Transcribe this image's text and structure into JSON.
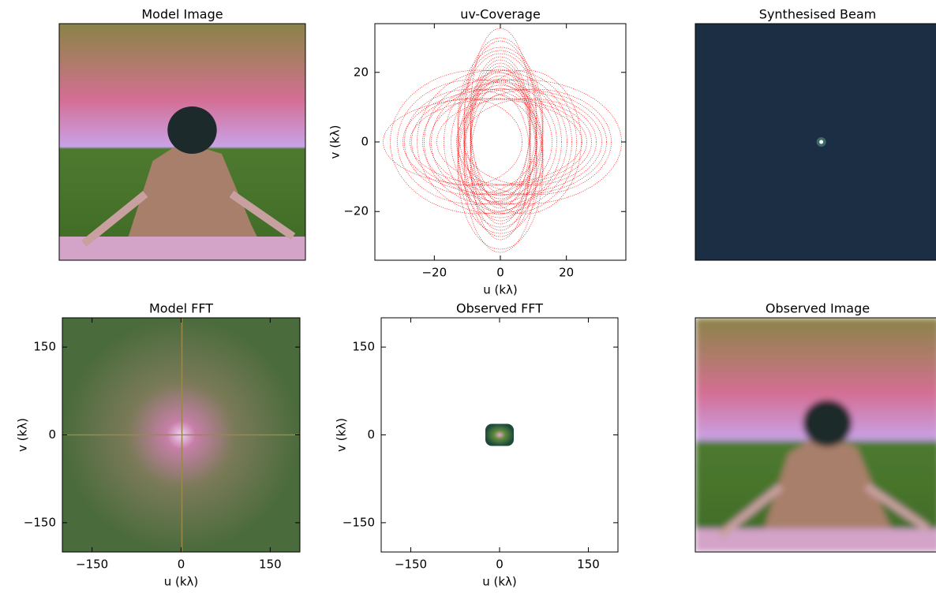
{
  "chart_data": [
    {
      "type": "image",
      "title": "Model Image"
    },
    {
      "type": "scatter",
      "title": "uv-Coverage",
      "xlabel": "u (kλ)",
      "ylabel": "v (kλ)",
      "color": "#ff0000",
      "xlim": [
        -38,
        38
      ],
      "ylim": [
        -34,
        34
      ],
      "xticks": [
        {
          "value": -20,
          "label": "−20"
        },
        0,
        20
      ],
      "yticks": [
        {
          "value": -20,
          "label": "−20"
        },
        0,
        20
      ]
    },
    {
      "type": "image",
      "title": "Synthesised Beam"
    },
    {
      "type": "image",
      "title": "Model FFT",
      "xlabel": "u (kλ)",
      "ylabel": "v (kλ)",
      "xlim": [
        -200,
        200
      ],
      "ylim": [
        -200,
        200
      ],
      "xticks": [
        {
          "value": -150,
          "label": "−150"
        },
        0,
        150
      ],
      "yticks": [
        {
          "value": -150,
          "label": "−150"
        },
        0,
        150
      ]
    },
    {
      "type": "image",
      "title": "Observed FFT",
      "xlabel": "u (kλ)",
      "ylabel": "v (kλ)",
      "xlim": [
        -200,
        200
      ],
      "ylim": [
        -200,
        200
      ],
      "xticks": [
        {
          "value": -150,
          "label": "−150"
        },
        0,
        150
      ],
      "yticks": [
        {
          "value": -150,
          "label": "−150"
        },
        0,
        150
      ]
    },
    {
      "type": "image",
      "title": "Observed Image"
    }
  ]
}
